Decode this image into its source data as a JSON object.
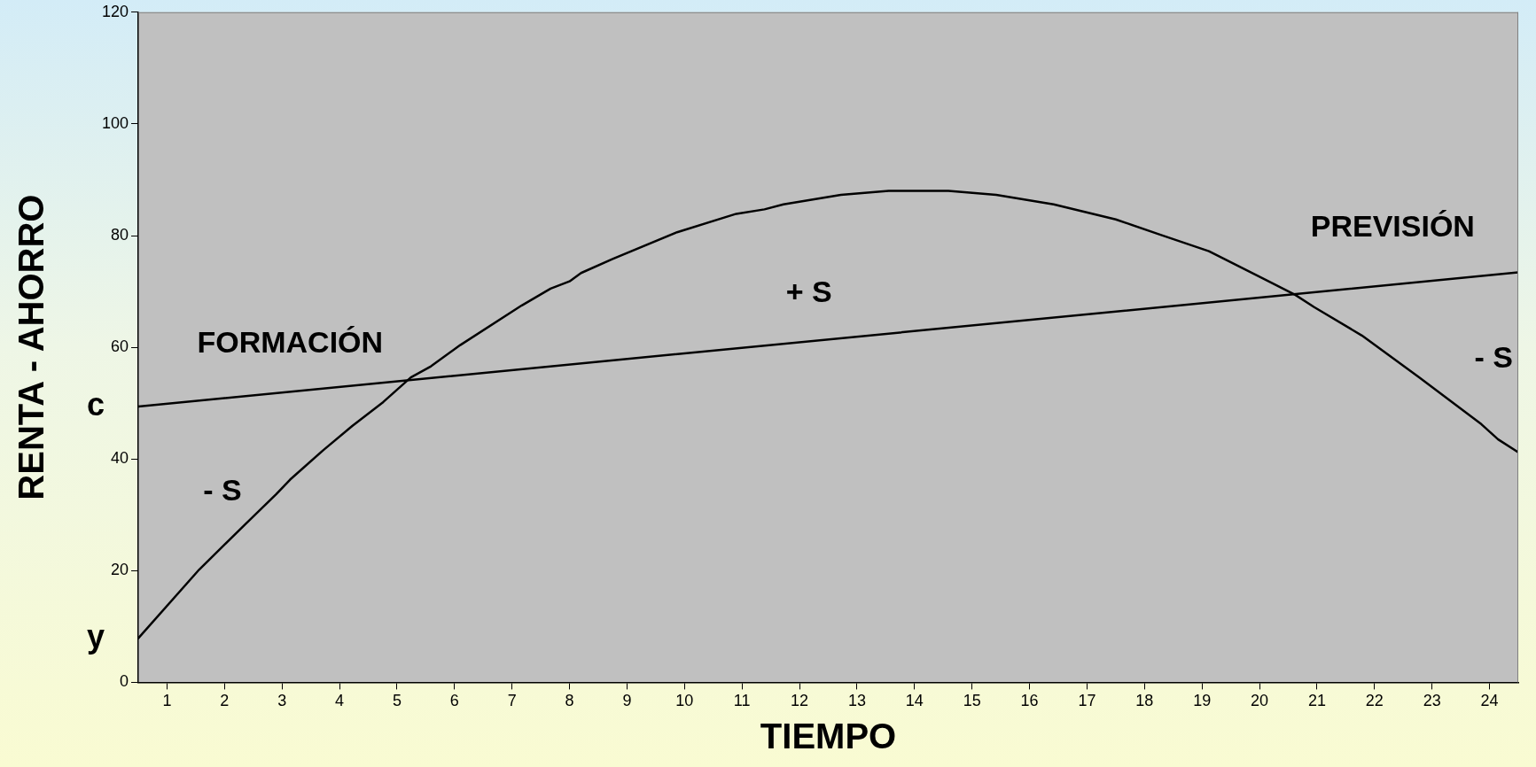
{
  "chart_data": {
    "type": "line",
    "xlabel": "TIEMPO",
    "ylabel": "RENTA - AHORRO",
    "xlim": [
      0.5,
      24.5
    ],
    "xticks": [
      1,
      2,
      3,
      4,
      5,
      6,
      7,
      8,
      9,
      10,
      11,
      12,
      13,
      14,
      15,
      16,
      17,
      18,
      19,
      20,
      21,
      22,
      23,
      24
    ],
    "ylim": [
      0,
      120
    ],
    "yticks": [
      0,
      20,
      40,
      60,
      80,
      100,
      120
    ],
    "grid": false,
    "legend": false,
    "marker": "none",
    "line_style": "solid",
    "series": [
      {
        "name": "y",
        "color": "#000000",
        "x": [
          0.5,
          1.56,
          2.35,
          2.9,
          3.14,
          3.72,
          4.22,
          4.76,
          5.24,
          5.59,
          6.1,
          7.17,
          7.67,
          8.0,
          8.2,
          8.75,
          9.87,
          10.9,
          11.39,
          11.72,
          12.72,
          13.55,
          14.59,
          15.42,
          16.42,
          17.5,
          18.29,
          19.12,
          20.12,
          20.62,
          20.95,
          21.78,
          22.78,
          23.86,
          24.15,
          24.5
        ],
        "values": [
          7.9,
          20.2,
          28.2,
          33.7,
          36.3,
          41.6,
          45.9,
          50.2,
          54.6,
          56.6,
          60.4,
          67.5,
          70.5,
          71.8,
          73.3,
          75.8,
          80.6,
          83.9,
          84.7,
          85.6,
          87.3,
          88.0,
          88.0,
          87.3,
          85.6,
          82.9,
          80.1,
          77.2,
          72.0,
          69.4,
          67.2,
          62.1,
          54.6,
          46.2,
          43.5,
          41.2
        ]
      },
      {
        "name": "c",
        "color": "#000000",
        "x": [
          0.5,
          24.5
        ],
        "values": [
          49.4,
          73.4
        ]
      }
    ],
    "annotations": [
      "FORMACIÓN",
      "- S",
      "+ S",
      "PREVISIÓN",
      "- S"
    ]
  }
}
